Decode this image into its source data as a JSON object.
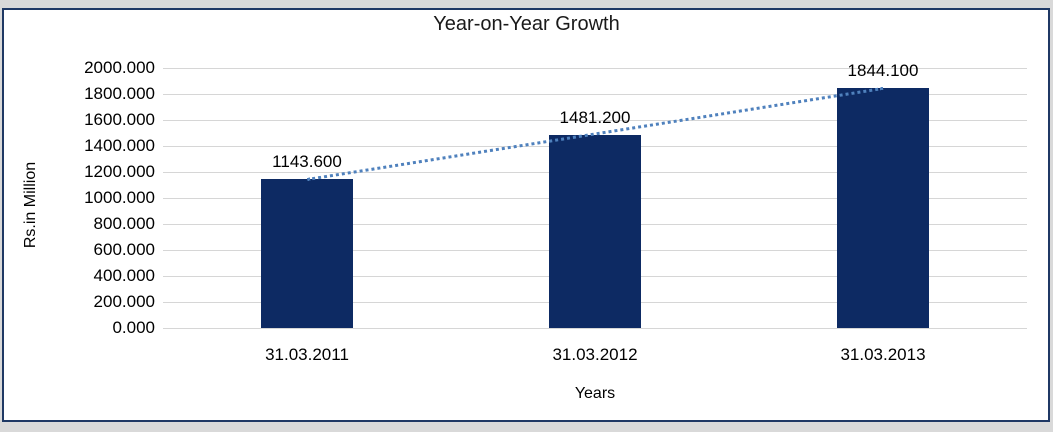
{
  "chart_data": {
    "type": "bar",
    "title": "Year-on-Year Growth",
    "xlabel": "Years",
    "ylabel": "Rs.in Million",
    "categories": [
      "31.03.2011",
      "31.03.2012",
      "31.03.2013"
    ],
    "values": [
      1143.6,
      1481.2,
      1844.1
    ],
    "value_labels": [
      "1143.600",
      "1481.200",
      "1844.100"
    ],
    "y_tick_labels": [
      "0.000",
      "200.000",
      "400.000",
      "600.000",
      "800.000",
      "1000.000",
      "1200.000",
      "1400.000",
      "1600.000",
      "1800.000",
      "2000.000"
    ],
    "ylim": [
      0,
      2000
    ],
    "y_tick_step": 200,
    "grid": "horizontal",
    "legend": "none",
    "trendline": {
      "type": "linear",
      "style": "dotted"
    },
    "colors": {
      "bar": "#0D2A63",
      "trendline": "#4F81BD",
      "gridline": "#D6D6D6",
      "frame_border": "#1F3864",
      "outer_band": "#D9D9D9",
      "plot_background": "#FFFFFF",
      "text": "#000000"
    }
  }
}
